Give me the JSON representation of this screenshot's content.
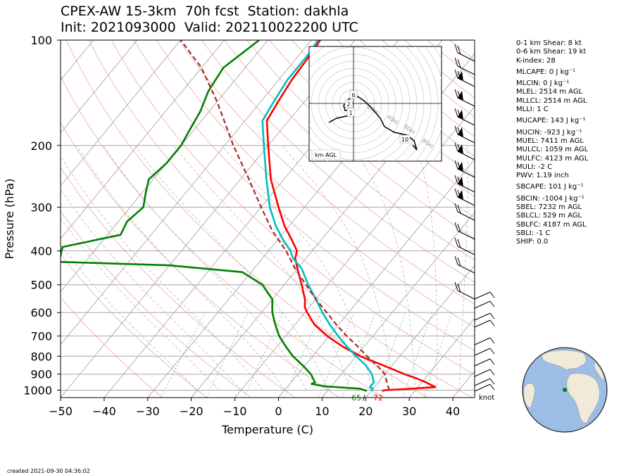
{
  "header": {
    "title_line1": "CPEX-AW 15-3km  70h fcst  Station: dakhla",
    "title_line2": "Init: 2021093000  Valid: 202110022200 UTC"
  },
  "chart_data": {
    "type": "line",
    "chart_kind": "skew-T log-p diagram",
    "xlabel": "Temperature (C)",
    "ylabel": "Pressure (hPa)",
    "xlim": [
      -50,
      45
    ],
    "ylim": [
      1050,
      100
    ],
    "y_scale": "log",
    "x_ticks": [
      -50,
      -40,
      -30,
      -20,
      -10,
      0,
      10,
      20,
      30,
      40
    ],
    "y_ticks": [
      100,
      200,
      300,
      400,
      500,
      600,
      700,
      800,
      900,
      1000
    ],
    "grid": true,
    "series": [
      {
        "key": "temperature",
        "color": "#ff0000",
        "points": [
          [
            1005,
            22.5
          ],
          [
            1000,
            23
          ],
          [
            990,
            29
          ],
          [
            980,
            34
          ],
          [
            970,
            33
          ],
          [
            950,
            31
          ],
          [
            925,
            28
          ],
          [
            900,
            24.5
          ],
          [
            850,
            18
          ],
          [
            800,
            11
          ],
          [
            750,
            5
          ],
          [
            700,
            -0.5
          ],
          [
            650,
            -5.5
          ],
          [
            600,
            -9.5
          ],
          [
            580,
            -11
          ],
          [
            550,
            -12.5
          ],
          [
            500,
            -16
          ],
          [
            450,
            -20
          ],
          [
            420,
            -22.5
          ],
          [
            400,
            -23.5
          ],
          [
            370,
            -27
          ],
          [
            340,
            -31
          ],
          [
            300,
            -36
          ],
          [
            250,
            -43
          ],
          [
            200,
            -50
          ],
          [
            170,
            -55
          ],
          [
            150,
            -56
          ],
          [
            130,
            -57
          ],
          [
            110,
            -57.5
          ],
          [
            100,
            -58
          ]
        ]
      },
      {
        "key": "dewpoint",
        "color": "#008000",
        "points": [
          [
            1005,
            19
          ],
          [
            990,
            17
          ],
          [
            975,
            8.5
          ],
          [
            960,
            5
          ],
          [
            950,
            5.5
          ],
          [
            900,
            3
          ],
          [
            850,
            -0.5
          ],
          [
            800,
            -4.5
          ],
          [
            750,
            -8
          ],
          [
            700,
            -11.5
          ],
          [
            650,
            -14.5
          ],
          [
            600,
            -17.5
          ],
          [
            550,
            -20
          ],
          [
            500,
            -25
          ],
          [
            460,
            -32
          ],
          [
            440,
            -50
          ],
          [
            430,
            -76
          ],
          [
            390,
            -78
          ],
          [
            360,
            -67
          ],
          [
            330,
            -68
          ],
          [
            300,
            -67
          ],
          [
            275,
            -69
          ],
          [
            250,
            -71
          ],
          [
            225,
            -70
          ],
          [
            200,
            -70
          ],
          [
            180,
            -71
          ],
          [
            160,
            -72
          ],
          [
            140,
            -74
          ],
          [
            120,
            -75
          ],
          [
            100,
            -72
          ]
        ]
      },
      {
        "key": "virtual-temperature",
        "color": "#00bfbf",
        "points": [
          [
            1005,
            20
          ],
          [
            990,
            20
          ],
          [
            980,
            19
          ],
          [
            950,
            19
          ],
          [
            900,
            17
          ],
          [
            850,
            14
          ],
          [
            800,
            10
          ],
          [
            750,
            6
          ],
          [
            700,
            2
          ],
          [
            650,
            -2
          ],
          [
            600,
            -6
          ],
          [
            550,
            -10
          ],
          [
            500,
            -14.5
          ],
          [
            450,
            -19
          ],
          [
            420,
            -23
          ],
          [
            400,
            -25
          ],
          [
            370,
            -29
          ],
          [
            340,
            -33
          ],
          [
            300,
            -38
          ],
          [
            250,
            -44
          ],
          [
            200,
            -51
          ],
          [
            170,
            -56
          ],
          [
            150,
            -57
          ],
          [
            130,
            -58
          ],
          [
            110,
            -58
          ],
          [
            100,
            -58.5
          ]
        ]
      },
      {
        "key": "parcel",
        "color": "#a52a2a",
        "points": [
          [
            1000,
            24
          ],
          [
            950,
            22
          ],
          [
            925,
            21
          ],
          [
            900,
            20
          ],
          [
            850,
            16.5
          ],
          [
            800,
            12.5
          ],
          [
            750,
            8.5
          ],
          [
            700,
            4
          ],
          [
            650,
            -0.5
          ],
          [
            600,
            -5
          ],
          [
            550,
            -10
          ],
          [
            500,
            -15
          ],
          [
            450,
            -20.5
          ],
          [
            400,
            -26
          ],
          [
            350,
            -33
          ],
          [
            300,
            -40
          ],
          [
            250,
            -48
          ],
          [
            200,
            -58
          ],
          [
            150,
            -70
          ],
          [
            120,
            -80
          ],
          [
            100,
            -90
          ]
        ]
      }
    ],
    "surface_labels": {
      "dewpoint_f": "65",
      "temperature_f": "72"
    },
    "hodograph": {
      "corner_label": "km AGL",
      "height_labels": [
        "1",
        "2",
        "6",
        "10"
      ],
      "ring_labels": [
        "20kt",
        "40kt",
        "60kt",
        "80kt"
      ]
    },
    "wind_unit": "knot"
  },
  "indices": [
    {
      "text": "0-1 km Shear: 8 kt",
      "gap": false
    },
    {
      "text": "0-6 km Shear: 19 kt",
      "gap": false
    },
    {
      "text": "K-index: 28",
      "gap": false
    },
    {
      "text": "MLCAPE: 0 J kg⁻¹",
      "gap": true
    },
    {
      "text": "MLCIN: 0 J kg⁻¹",
      "gap": true
    },
    {
      "text": "MLEL: 2514 m AGL",
      "gap": false
    },
    {
      "text": "MLLCL: 2514 m AGL",
      "gap": false
    },
    {
      "text": "MLLI: 1 C",
      "gap": false
    },
    {
      "text": "MUCAPE: 143 J kg⁻¹",
      "gap": true
    },
    {
      "text": "MUCIN: -923 J kg⁻¹",
      "gap": true
    },
    {
      "text": "MUEL: 7411 m AGL",
      "gap": false
    },
    {
      "text": "MULCL: 1059 m AGL",
      "gap": false
    },
    {
      "text": "MULFC: 4123 m AGL",
      "gap": false
    },
    {
      "text": "MULI: -2 C",
      "gap": false
    },
    {
      "text": "PWV: 1.19 inch",
      "gap": false
    },
    {
      "text": "SBCAPE: 101 J kg⁻¹",
      "gap": true
    },
    {
      "text": "SBCIN: -1004 J kg⁻¹",
      "gap": true
    },
    {
      "text": "SBEL: 7232 m AGL",
      "gap": false
    },
    {
      "text": "SBLCL: 529 m AGL",
      "gap": false
    },
    {
      "text": "SBLFC: 4187 m AGL",
      "gap": false
    },
    {
      "text": "SBLI: -1 C",
      "gap": false
    },
    {
      "text": "SHIP: 0.0",
      "gap": false
    }
  ],
  "footer": {
    "created": "created 2021-09-30 04:36:02"
  }
}
